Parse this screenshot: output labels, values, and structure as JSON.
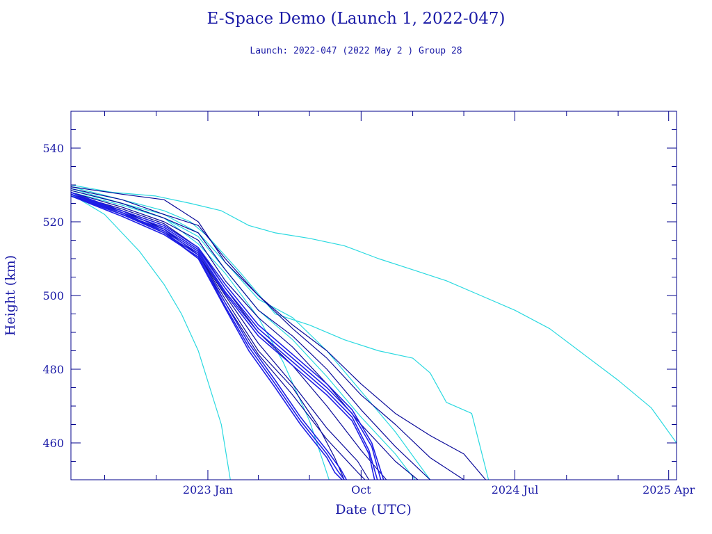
{
  "colors": {
    "axis": "#00008b",
    "text": "#1a1aa6",
    "dark": "#0a0a99",
    "mid": "#1f1fe6",
    "cyan": "#2ad9e0"
  },
  "chart_data": {
    "type": "line",
    "title": "E-Space Demo (Launch 1, 2022-047)",
    "subtitle": "Launch: 2022-047  (2022 May  2 )  Group 28",
    "xlabel": "Date (UTC)",
    "ylabel": "Height (km)",
    "xlim": [
      "2022-05-02",
      "2025-04-15"
    ],
    "ylim": [
      450,
      550
    ],
    "x_ticks": [
      {
        "date": "2023-01-01",
        "label": "2023 Jan"
      },
      {
        "date": "2023-10-01",
        "label": "Oct"
      },
      {
        "date": "2024-07-01",
        "label": "2024 Jul"
      },
      {
        "date": "2025-04-01",
        "label": "2025 Apr"
      }
    ],
    "y_ticks": [
      460,
      480,
      500,
      520,
      540
    ],
    "grid": false,
    "legend": "none",
    "series": [
      {
        "color": "cyan",
        "x": [
          "2022-05-02",
          "2022-07-15",
          "2022-09-30",
          "2022-12-01",
          "2023-01-25",
          "2023-03-15",
          "2023-05-01",
          "2023-07-01",
          "2023-09-01",
          "2023-11-01",
          "2024-01-01",
          "2024-03-01",
          "2024-05-01",
          "2024-07-01",
          "2024-09-01",
          "2024-11-01",
          "2025-01-01",
          "2025-03-01",
          "2025-04-15"
        ],
        "y": [
          530,
          528,
          527,
          525,
          523,
          519,
          517,
          515.5,
          513.5,
          510,
          507,
          504,
          500,
          496,
          491,
          484,
          477,
          469.5,
          460
        ]
      },
      {
        "color": "cyan",
        "x": [
          "2022-05-02",
          "2022-07-01",
          "2022-09-01",
          "2022-10-15",
          "2022-11-15",
          "2022-12-15",
          "2023-01-25",
          "2023-02-10"
        ],
        "y": [
          527.5,
          522,
          512,
          503,
          495,
          485,
          465,
          450
        ]
      },
      {
        "color": "cyan",
        "x": [
          "2022-05-02",
          "2022-08-01",
          "2022-10-15",
          "2022-12-15",
          "2023-02-01",
          "2023-04-01",
          "2023-05-15",
          "2023-07-01",
          "2023-08-05"
        ],
        "y": [
          529,
          525,
          521,
          514,
          506,
          494,
          482,
          466,
          450
        ]
      },
      {
        "color": "cyan",
        "x": [
          "2022-05-02",
          "2022-08-01",
          "2022-10-15",
          "2022-12-01",
          "2023-01-01",
          "2023-03-01",
          "2023-05-01",
          "2023-07-01",
          "2023-09-01",
          "2023-11-01",
          "2024-01-01",
          "2024-02-01",
          "2024-03-01",
          "2024-04-15",
          "2024-05-15"
        ],
        "y": [
          529.5,
          526,
          523,
          520,
          516,
          506,
          495,
          492,
          488,
          485,
          483,
          479,
          471,
          468,
          450
        ]
      },
      {
        "color": "cyan",
        "x": [
          "2022-05-02",
          "2022-08-01",
          "2022-10-15",
          "2022-12-15",
          "2023-02-01",
          "2023-04-01",
          "2023-06-01",
          "2023-08-01",
          "2023-10-01",
          "2023-12-01",
          "2024-02-01"
        ],
        "y": [
          528.5,
          525,
          522,
          517,
          509,
          499,
          494,
          485,
          474,
          463,
          450
        ]
      },
      {
        "color": "cyan",
        "x": [
          "2022-05-02",
          "2022-08-01",
          "2022-10-15",
          "2022-12-15",
          "2023-02-01",
          "2023-04-01",
          "2023-06-01",
          "2023-08-01",
          "2023-10-01",
          "2023-12-01",
          "2024-01-05"
        ],
        "y": [
          528,
          524.5,
          521,
          516,
          507,
          496,
          488,
          478,
          467,
          457,
          450
        ]
      },
      {
        "color": "dark",
        "x": [
          "2022-05-02",
          "2022-08-01",
          "2022-10-15",
          "2022-12-15",
          "2023-02-01",
          "2023-04-01",
          "2023-06-01",
          "2023-08-01",
          "2023-10-01",
          "2023-12-01",
          "2024-02-01",
          "2024-04-01",
          "2024-05-10"
        ],
        "y": [
          529.5,
          527.5,
          526,
          520,
          509,
          500,
          492,
          485,
          476,
          468,
          462,
          457,
          450
        ]
      },
      {
        "color": "dark",
        "x": [
          "2022-05-02",
          "2022-08-01",
          "2022-10-15",
          "2022-12-15",
          "2023-02-01",
          "2023-04-01",
          "2023-06-01",
          "2023-08-01",
          "2023-10-01",
          "2023-12-01",
          "2024-02-01",
          "2024-04-01"
        ],
        "y": [
          529,
          526,
          522,
          519,
          510,
          500,
          491,
          483,
          473,
          465,
          456,
          450
        ]
      },
      {
        "color": "dark",
        "x": [
          "2022-05-02",
          "2022-08-01",
          "2022-10-15",
          "2022-12-15",
          "2023-02-01",
          "2023-04-01",
          "2023-06-01",
          "2023-08-01",
          "2023-10-01",
          "2023-12-01",
          "2024-02-01"
        ],
        "y": [
          528.5,
          525,
          521,
          517,
          507,
          496,
          489,
          480,
          469,
          459,
          450
        ]
      },
      {
        "color": "dark",
        "x": [
          "2022-05-02",
          "2022-08-01",
          "2022-10-15",
          "2022-12-15",
          "2023-02-01",
          "2023-04-01",
          "2023-06-01",
          "2023-08-01",
          "2023-10-01",
          "2023-12-01",
          "2024-01-10"
        ],
        "y": [
          528,
          524,
          520,
          515,
          504,
          494,
          486,
          476,
          465,
          455,
          450
        ]
      },
      {
        "color": "dark",
        "x": [
          "2022-05-02",
          "2022-08-01",
          "2022-10-15",
          "2022-12-15",
          "2023-02-01",
          "2023-04-01",
          "2023-06-01",
          "2023-08-01",
          "2023-10-01",
          "2023-11-15"
        ],
        "y": [
          527.5,
          523.5,
          519.5,
          513,
          502,
          490,
          481,
          470,
          458,
          450
        ]
      },
      {
        "color": "dark",
        "x": [
          "2022-05-02",
          "2022-08-01",
          "2022-10-15",
          "2022-12-15",
          "2023-02-01",
          "2023-04-01",
          "2023-06-01",
          "2023-08-01",
          "2023-09-25",
          "2023-10-15"
        ],
        "y": [
          527,
          523,
          518,
          511,
          500,
          487,
          476,
          464,
          455,
          450
        ]
      },
      {
        "color": "dark",
        "x": [
          "2022-05-02",
          "2022-08-01",
          "2022-10-15",
          "2022-12-15",
          "2023-02-01",
          "2023-04-01",
          "2023-06-01",
          "2023-08-01",
          "2023-09-25",
          "2023-10-08"
        ],
        "y": [
          527,
          522.5,
          517.5,
          510,
          498,
          484,
          473,
          461,
          452,
          450
        ]
      },
      {
        "color": "dark",
        "x": [
          "2022-05-02",
          "2022-08-01",
          "2022-10-15",
          "2022-12-15",
          "2023-02-01",
          "2023-04-01",
          "2023-06-01",
          "2023-07-15",
          "2023-08-15",
          "2023-09-01"
        ],
        "y": [
          527.5,
          523,
          518,
          511,
          499,
          485,
          475,
          465,
          456,
          450
        ]
      },
      {
        "color": "mid",
        "x": [
          "2022-05-02",
          "2022-08-01",
          "2022-10-15",
          "2022-12-15",
          "2023-02-01",
          "2023-04-01",
          "2023-06-01",
          "2023-08-01",
          "2023-09-15",
          "2023-10-20",
          "2023-11-10"
        ],
        "y": [
          528,
          523,
          519,
          513,
          503,
          492,
          484,
          476,
          469,
          460,
          450
        ]
      },
      {
        "color": "mid",
        "x": [
          "2022-05-02",
          "2022-08-01",
          "2022-10-15",
          "2022-12-15",
          "2023-02-01",
          "2023-04-01",
          "2023-06-01",
          "2023-08-01",
          "2023-09-15",
          "2023-10-20",
          "2023-11-05"
        ],
        "y": [
          527.5,
          522.5,
          518.5,
          512.5,
          502,
          491,
          483,
          475,
          468,
          459,
          450
        ]
      },
      {
        "color": "mid",
        "x": [
          "2022-05-02",
          "2022-08-01",
          "2022-10-15",
          "2022-12-15",
          "2023-02-01",
          "2023-04-01",
          "2023-06-01",
          "2023-08-01",
          "2023-09-15",
          "2023-10-15",
          "2023-10-30"
        ],
        "y": [
          527,
          522,
          518,
          512,
          501,
          490,
          482,
          474,
          467,
          458,
          450
        ]
      },
      {
        "color": "mid",
        "x": [
          "2022-05-02",
          "2022-08-01",
          "2022-10-15",
          "2022-12-15",
          "2023-02-01",
          "2023-04-01",
          "2023-06-01",
          "2023-08-01",
          "2023-09-15",
          "2023-10-15",
          "2023-10-25"
        ],
        "y": [
          527.5,
          522,
          517.5,
          511.5,
          500.5,
          489,
          481,
          473,
          466,
          457,
          450
        ]
      },
      {
        "color": "mid",
        "x": [
          "2022-05-02",
          "2022-08-01",
          "2022-10-15",
          "2022-12-15",
          "2023-02-01",
          "2023-03-15",
          "2023-05-01",
          "2023-06-15",
          "2023-08-01",
          "2023-08-25",
          "2023-09-05"
        ],
        "y": [
          528,
          522.5,
          517,
          511,
          498,
          487,
          477,
          467,
          458,
          453,
          450
        ]
      },
      {
        "color": "mid",
        "x": [
          "2022-05-02",
          "2022-08-01",
          "2022-10-15",
          "2022-12-15",
          "2023-02-01",
          "2023-03-15",
          "2023-05-01",
          "2023-06-15",
          "2023-08-01",
          "2023-08-20",
          "2023-09-01"
        ],
        "y": [
          527,
          521.5,
          516.5,
          510.5,
          497,
          486,
          476,
          466,
          457,
          452.5,
          450
        ]
      },
      {
        "color": "mid",
        "x": [
          "2022-05-02",
          "2022-08-01",
          "2022-10-15",
          "2022-12-15",
          "2023-02-01",
          "2023-03-15",
          "2023-05-01",
          "2023-06-15",
          "2023-08-01",
          "2023-08-15",
          "2023-08-28"
        ],
        "y": [
          527.5,
          522,
          517,
          510,
          496.5,
          485,
          475,
          465,
          456,
          452,
          450
        ]
      }
    ]
  }
}
